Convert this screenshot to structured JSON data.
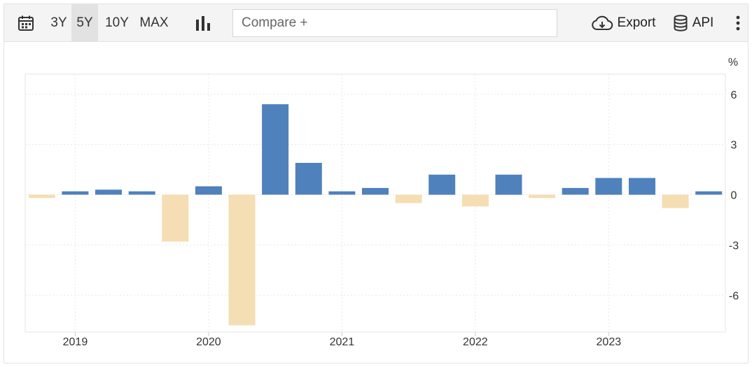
{
  "toolbar": {
    "calendar_icon": "calendar-icon",
    "ranges": [
      "3Y",
      "5Y",
      "10Y",
      "MAX"
    ],
    "active_range": "5Y",
    "chart_type_icon": "bar-chart-icon",
    "compare_placeholder": "Compare +",
    "export_label": "Export",
    "export_icon": "cloud-download-icon",
    "api_label": "API",
    "api_icon": "database-icon",
    "more_icon": "more-vertical-icon"
  },
  "colors": {
    "positive": "#4f81bd",
    "negative": "#f5deb3"
  },
  "chart_data": {
    "type": "bar",
    "unit_label": "%",
    "ylim": [
      -8.2,
      7.2
    ],
    "yticks": [
      6,
      3,
      0,
      -3,
      -6
    ],
    "y_axis_position": "right",
    "x_tick_labels": [
      "2019",
      "2020",
      "2021",
      "2022",
      "2023"
    ],
    "grid": true,
    "values": [
      -0.2,
      0.2,
      0.3,
      0.2,
      -2.8,
      0.5,
      -7.8,
      5.4,
      1.9,
      0.2,
      0.4,
      -0.5,
      1.2,
      -0.7,
      1.2,
      -0.2,
      0.4,
      1.0,
      1.0,
      -0.8,
      0.2
    ]
  }
}
